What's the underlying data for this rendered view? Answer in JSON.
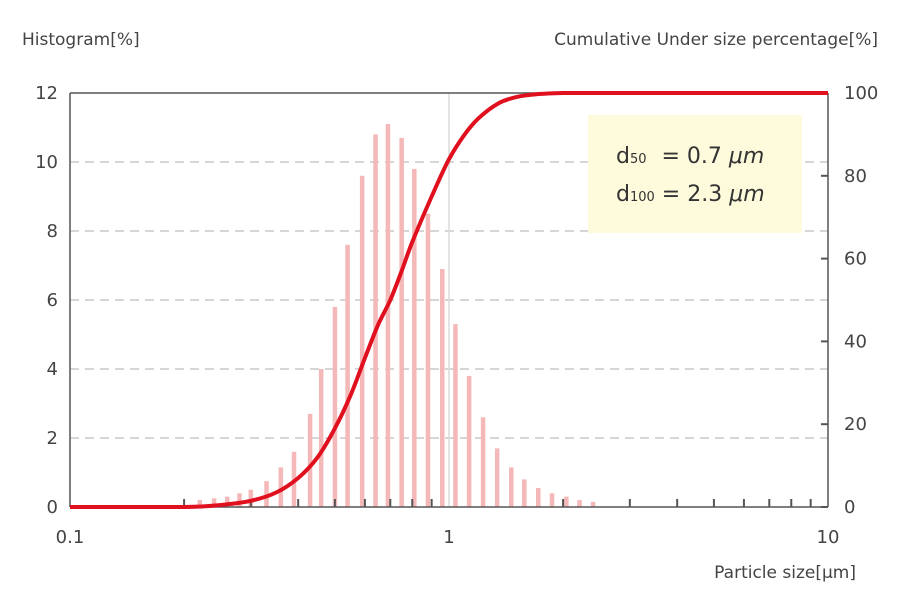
{
  "chart_data": {
    "type": "bar",
    "combo": "histogram bars (left axis) + cumulative line (right axis)",
    "y_left_label": "Histogram[%]",
    "y_right_label": "Cumulative Under size percentage[%]",
    "xlabel": "Particle size[μm]",
    "x_scale": "log",
    "xlim": [
      0.1,
      10
    ],
    "x_ticks": [
      "0.1",
      "1",
      "10"
    ],
    "y_left_lim": [
      0,
      12
    ],
    "y_left_ticks": [
      "0",
      "2",
      "4",
      "6",
      "8",
      "10",
      "12"
    ],
    "y_right_lim": [
      0,
      100
    ],
    "y_right_ticks": [
      "0",
      "20",
      "40",
      "60",
      "80",
      "100"
    ],
    "grid": "horizontal dashed, plus vertical line at x=1",
    "histogram": {
      "color": "#f5b8b8",
      "x": [
        0.22,
        0.24,
        0.26,
        0.28,
        0.3,
        0.33,
        0.36,
        0.39,
        0.43,
        0.46,
        0.5,
        0.54,
        0.59,
        0.64,
        0.69,
        0.75,
        0.81,
        0.88,
        0.96,
        1.04,
        1.13,
        1.23,
        1.34,
        1.46,
        1.58,
        1.72,
        1.87,
        2.04,
        2.21,
        2.4
      ],
      "values": [
        0.2,
        0.25,
        0.3,
        0.4,
        0.5,
        0.75,
        1.15,
        1.6,
        2.7,
        4.0,
        5.8,
        7.6,
        9.6,
        10.8,
        11.1,
        10.7,
        9.8,
        8.5,
        6.9,
        5.3,
        3.8,
        2.6,
        1.7,
        1.15,
        0.8,
        0.55,
        0.4,
        0.3,
        0.2,
        0.15
      ]
    },
    "cumulative": {
      "color": "#e0101f",
      "x": [
        0.1,
        0.2,
        0.25,
        0.3,
        0.35,
        0.4,
        0.45,
        0.5,
        0.55,
        0.6,
        0.65,
        0.7,
        0.75,
        0.8,
        0.9,
        1.0,
        1.1,
        1.2,
        1.35,
        1.5,
        1.7,
        2.0,
        2.3,
        3.0,
        10.0
      ],
      "values": [
        0,
        0,
        0.5,
        1.5,
        3.5,
        7,
        12,
        19,
        27,
        36,
        44,
        50,
        57,
        64,
        75,
        84,
        90,
        94,
        97.5,
        99,
        99.7,
        100,
        100,
        100,
        100
      ]
    },
    "annotation": {
      "line1": {
        "symbol": "d",
        "subscript": "50",
        "value": " = 0.7 ",
        "unit": "μm"
      },
      "line2": {
        "symbol": "d",
        "subscript": "100",
        "value": " = 2.3 ",
        "unit": "μm"
      },
      "background": "#fdfbdc"
    }
  }
}
